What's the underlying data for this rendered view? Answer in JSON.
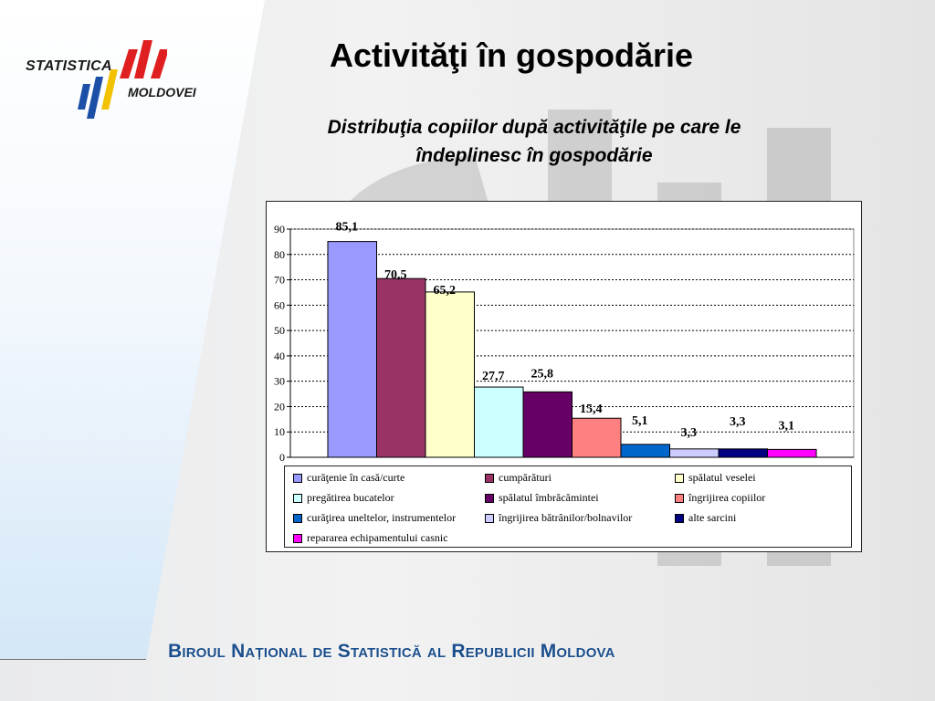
{
  "slide": {
    "title": "Activităţi în gospodărie",
    "subtitle_line1": "Distribuţia copiilor după activităţile pe care le",
    "subtitle_line2": "îndeplinesc în gospodărie",
    "footer": "Biroul Național de Statistică al Republicii Moldova"
  },
  "logo": {
    "top_text": "STATISTICA",
    "bottom_text": "MOLDOVEI"
  },
  "chart_data": {
    "type": "bar",
    "title": "",
    "xlabel": "",
    "ylabel": "",
    "ylim": [
      0,
      90
    ],
    "yticks": [
      0,
      10,
      20,
      30,
      40,
      50,
      60,
      70,
      80,
      90
    ],
    "grid": true,
    "legend_position": "bottom",
    "categories": [
      "curăţenie în casă/curte",
      "cumpărături",
      "spălatul veselei",
      "pregătirea bucatelor",
      "spălatul îmbrăcămintei",
      "îngrijirea copiilor",
      "curăţirea uneltelor, instrumentelor",
      "îngrijirea bătrânilor/bolnavilor",
      "alte sarcini",
      "repararea echipamentului casnic"
    ],
    "values": [
      85.1,
      70.5,
      65.2,
      27.7,
      25.8,
      15.4,
      5.1,
      3.3,
      3.3,
      3.1
    ],
    "value_labels": [
      "85,1",
      "70,5",
      "65,2",
      "27,7",
      "25,8",
      "15,4",
      "5,1",
      "3,3",
      "3,3",
      "3,1"
    ],
    "colors": [
      "#9999ff",
      "#993366",
      "#ffffcc",
      "#ccffff",
      "#660066",
      "#ff8080",
      "#0066cc",
      "#ccccff",
      "#000080",
      "#ff00ff"
    ]
  }
}
